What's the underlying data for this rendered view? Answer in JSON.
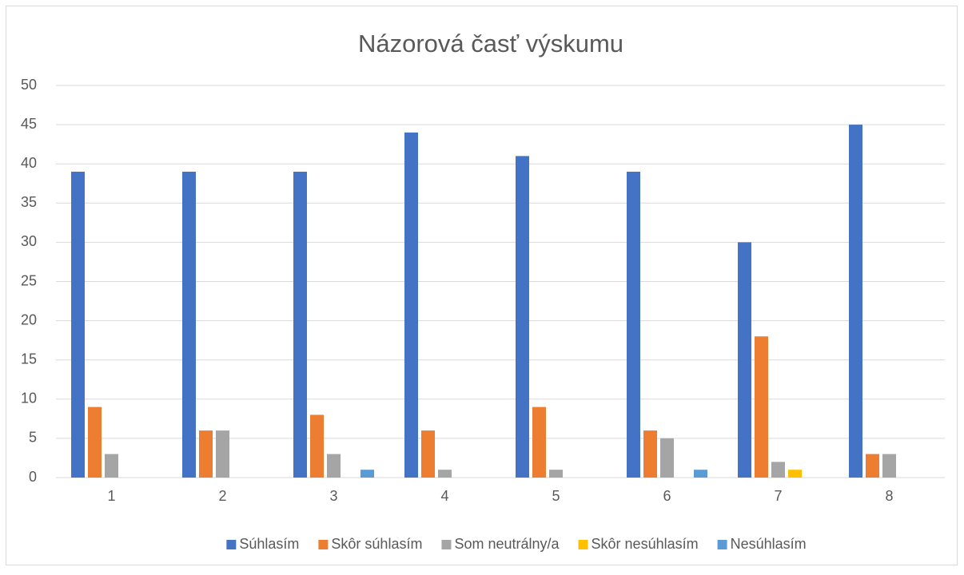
{
  "chart_data": {
    "type": "bar",
    "title": "Názorová časť výskumu",
    "categories": [
      "1",
      "2",
      "3",
      "4",
      "5",
      "6",
      "7",
      "8"
    ],
    "series": [
      {
        "name": "Súhlasím",
        "color": "#4472c4",
        "values": [
          39,
          39,
          39,
          44,
          41,
          39,
          30,
          45
        ]
      },
      {
        "name": "Skôr súhlasím",
        "color": "#ed7d31",
        "values": [
          9,
          6,
          8,
          6,
          9,
          6,
          18,
          3
        ]
      },
      {
        "name": "Som neutrálny/a",
        "color": "#a5a5a5",
        "values": [
          3,
          6,
          3,
          1,
          1,
          5,
          2,
          3
        ]
      },
      {
        "name": "Skôr nesúhlasím",
        "color": "#ffc000",
        "values": [
          0,
          0,
          0,
          0,
          0,
          0,
          1,
          0
        ]
      },
      {
        "name": "Nesúhlasím",
        "color": "#5b9bd5",
        "values": [
          0,
          0,
          1,
          0,
          0,
          1,
          0,
          0
        ]
      }
    ],
    "ylim": [
      0,
      50
    ],
    "yticks": [
      0,
      5,
      10,
      15,
      20,
      25,
      30,
      35,
      40,
      45,
      50
    ],
    "grid": true,
    "legend": "bottom"
  }
}
